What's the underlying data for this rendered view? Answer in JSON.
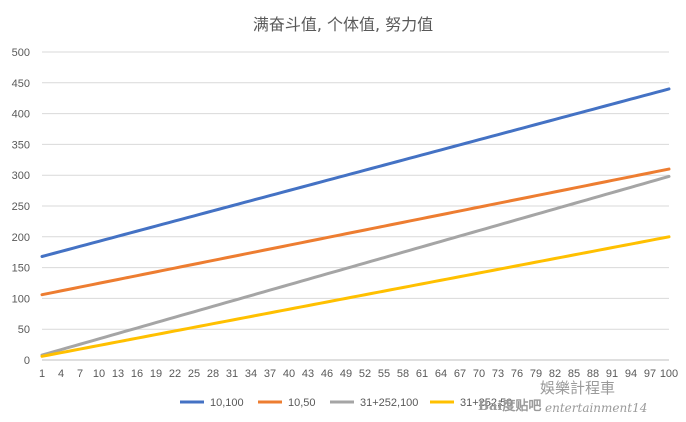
{
  "chart_data": {
    "type": "line",
    "title": "满奋斗值, 个体值, 努力值",
    "x_start": 1,
    "x_end": 100,
    "x_tick_labels": [
      "1",
      "4",
      "7",
      "10",
      "13",
      "16",
      "19",
      "22",
      "25",
      "28",
      "31",
      "34",
      "37",
      "40",
      "43",
      "46",
      "49",
      "52",
      "55",
      "58",
      "61",
      "64",
      "67",
      "70",
      "73",
      "76",
      "79",
      "82",
      "85",
      "88",
      "91",
      "94",
      "97",
      "100"
    ],
    "ylim": [
      0,
      500
    ],
    "y_tick_labels": [
      "0",
      "50",
      "100",
      "150",
      "200",
      "250",
      "300",
      "350",
      "400",
      "450",
      "500"
    ],
    "grid": true,
    "legend_position": "bottom",
    "series": [
      {
        "name": "10,100",
        "color": "#4472C4",
        "y_at_x1": 168,
        "y_at_x100": 440
      },
      {
        "name": "10,50",
        "color": "#ED7D31",
        "y_at_x1": 106,
        "y_at_x100": 310
      },
      {
        "name": "31+252,100",
        "color": "#A5A5A5",
        "y_at_x1": 8,
        "y_at_x100": 298
      },
      {
        "name": "31+252,50",
        "color": "#FFC000",
        "y_at_x1": 6,
        "y_at_x100": 200
      }
    ]
  },
  "watermarks": {
    "baidu": "Bai度贴吧",
    "cn": "娛樂計程車",
    "en": "entertainment14"
  }
}
